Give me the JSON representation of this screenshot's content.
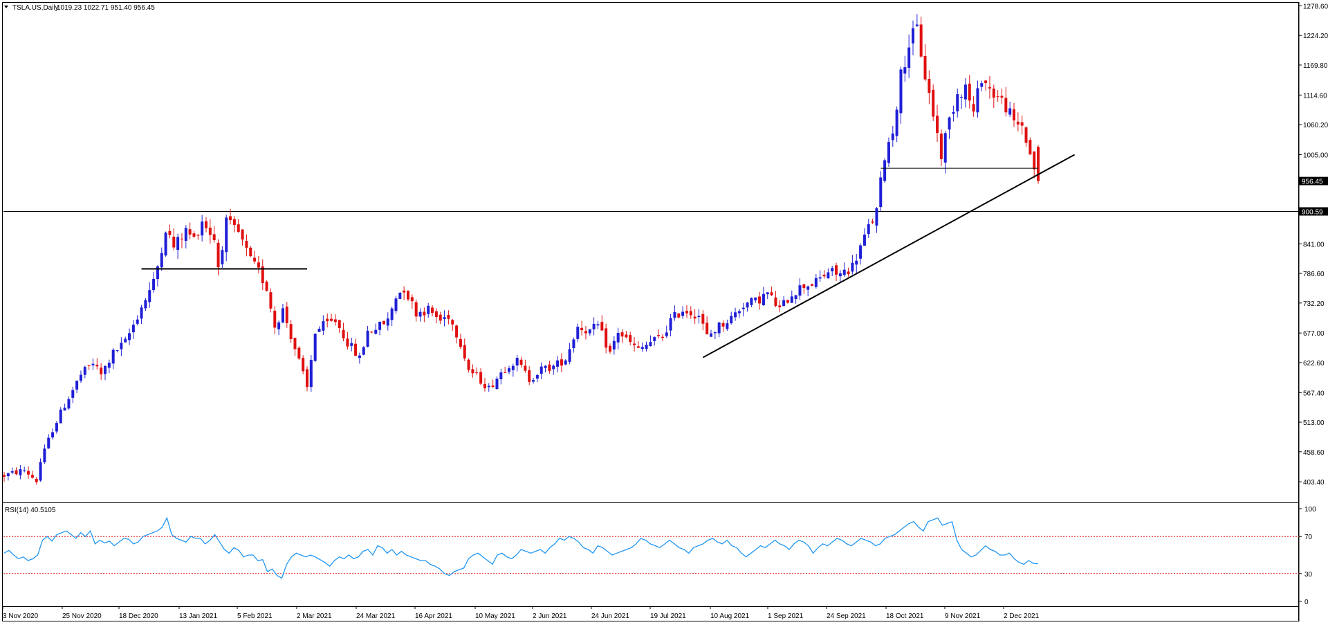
{
  "window": {
    "symbol_header": "TSLA.US,Daily",
    "ohlc_header": "1019.23 1022.71 951.40 956.45",
    "rsi_header": "RSI(14) 40.5105"
  },
  "colors": {
    "bull": "#1f1fd6",
    "bear": "#e01010",
    "rsi_line": "#2196f3",
    "rsi_levels": "#e02020",
    "trendline": "#000000",
    "grid_frame": "#000000"
  },
  "chart_data": [
    {
      "type": "candlestick",
      "title": "TSLA.US,Daily",
      "y_tick_labels": [
        "1278.60",
        "1224.20",
        "1169.80",
        "1114.60",
        "1060.20",
        "1005.00",
        "956.45",
        "900.59",
        "841.00",
        "786.60",
        "732.20",
        "677.00",
        "622.60",
        "567.40",
        "513.00",
        "458.60",
        "403.40"
      ],
      "ylim": [
        368,
        1283
      ],
      "x_tick_labels": [
        "3 Nov 2020",
        "25 Nov 2020",
        "18 Dec 2020",
        "13 Jan 2021",
        "5 Feb 2021",
        "2 Mar 2021",
        "24 Mar 2021",
        "16 Apr 2021",
        "10 May 2021",
        "2 Jun 2021",
        "24 Jun 2021",
        "19 Jul 2021",
        "10 Aug 2021",
        "1 Sep 2021",
        "24 Sep 2021",
        "18 Oct 2021",
        "9 Nov 2021",
        "2 Dec 2021"
      ],
      "last_price": {
        "value": 956.45,
        "label": "956.45"
      },
      "horizontal_level": {
        "value": 900.59,
        "label": "900.59"
      },
      "support_lines": [
        {
          "value": 795,
          "from_bar": 34,
          "to_bar": 75
        },
        {
          "value": 980,
          "from_bar": 217,
          "to_bar": 256
        }
      ],
      "trendline": {
        "from": {
          "bar": 173,
          "value": 632
        },
        "to": {
          "bar": 265,
          "value": 1005
        }
      },
      "anchors": [
        [
          0,
          415
        ],
        [
          5,
          425
        ],
        [
          8,
          405
        ],
        [
          9,
          440
        ],
        [
          12,
          500
        ],
        [
          15,
          545
        ],
        [
          19,
          600
        ],
        [
          22,
          622
        ],
        [
          24,
          600
        ],
        [
          27,
          640
        ],
        [
          30,
          660
        ],
        [
          34,
          725
        ],
        [
          37,
          770
        ],
        [
          38,
          800
        ],
        [
          40,
          870
        ],
        [
          42,
          835
        ],
        [
          45,
          865
        ],
        [
          47,
          850
        ],
        [
          49,
          885
        ],
        [
          52,
          850
        ],
        [
          53,
          800
        ],
        [
          55,
          880
        ],
        [
          58,
          860
        ],
        [
          61,
          810
        ],
        [
          63,
          790
        ],
        [
          65,
          760
        ],
        [
          67,
          690
        ],
        [
          69,
          720
        ],
        [
          73,
          625
        ],
        [
          75,
          575
        ],
        [
          77,
          680
        ],
        [
          79,
          690
        ],
        [
          82,
          700
        ],
        [
          85,
          660
        ],
        [
          88,
          630
        ],
        [
          90,
          680
        ],
        [
          93,
          690
        ],
        [
          95,
          700
        ],
        [
          97,
          745
        ],
        [
          99,
          760
        ],
        [
          102,
          715
        ],
        [
          105,
          720
        ],
        [
          108,
          700
        ],
        [
          110,
          710
        ],
        [
          113,
          660
        ],
        [
          115,
          610
        ],
        [
          118,
          590
        ],
        [
          120,
          575
        ],
        [
          123,
          605
        ],
        [
          125,
          620
        ],
        [
          127,
          625
        ],
        [
          130,
          592
        ],
        [
          133,
          610
        ],
        [
          136,
          615
        ],
        [
          139,
          630
        ],
        [
          142,
          690
        ],
        [
          145,
          680
        ],
        [
          147,
          690
        ],
        [
          150,
          640
        ],
        [
          152,
          680
        ],
        [
          154,
          665
        ],
        [
          157,
          645
        ],
        [
          160,
          660
        ],
        [
          163,
          670
        ],
        [
          165,
          700
        ],
        [
          168,
          720
        ],
        [
          170,
          715
        ],
        [
          172,
          710
        ],
        [
          174,
          670
        ],
        [
          177,
          690
        ],
        [
          180,
          705
        ],
        [
          183,
          730
        ],
        [
          186,
          735
        ],
        [
          189,
          750
        ],
        [
          192,
          720
        ],
        [
          195,
          750
        ],
        [
          198,
          765
        ],
        [
          201,
          770
        ],
        [
          204,
          790
        ],
        [
          207,
          785
        ],
        [
          210,
          800
        ],
        [
          212,
          835
        ],
        [
          214,
          870
        ],
        [
          216,
          900
        ],
        [
          218,
          1005
        ],
        [
          220,
          1050
        ],
        [
          222,
          1150
        ],
        [
          224,
          1210
        ],
        [
          226,
          1235
        ],
        [
          228,
          1150
        ],
        [
          230,
          1080
        ],
        [
          232,
          1005
        ],
        [
          234,
          1070
        ],
        [
          236,
          1120
        ],
        [
          238,
          1130
        ],
        [
          240,
          1080
        ],
        [
          242,
          1150
        ],
        [
          244,
          1125
        ],
        [
          246,
          1110
        ],
        [
          248,
          1095
        ],
        [
          250,
          1060
        ],
        [
          252,
          1060
        ],
        [
          254,
          1005
        ],
        [
          256,
          960
        ]
      ],
      "bar_count": 256
    },
    {
      "type": "line",
      "title": "RSI(14) 40.5105",
      "y_tick_labels": [
        "100",
        "70",
        "30",
        "0"
      ],
      "ylim": [
        0,
        100
      ],
      "levels": [
        70,
        30
      ],
      "series": [
        {
          "values": [
            52,
            55,
            50,
            46,
            48,
            44,
            46,
            50,
            66,
            70,
            65,
            72,
            74,
            76,
            72,
            68,
            74,
            70,
            76,
            62,
            66,
            63,
            65,
            60,
            64,
            68,
            67,
            62,
            64,
            70,
            72,
            74,
            76,
            80,
            90,
            72,
            68,
            66,
            64,
            70,
            68,
            68,
            62,
            66,
            72,
            64,
            56,
            52,
            58,
            55,
            48,
            50,
            50,
            44,
            45,
            32,
            35,
            28,
            25,
            40,
            48,
            52,
            50,
            48,
            50,
            48,
            45,
            42,
            38,
            44,
            48,
            46,
            50,
            46,
            48,
            54,
            56,
            50,
            60,
            58,
            52,
            56,
            50,
            54,
            50,
            48,
            46,
            44,
            44,
            40,
            38,
            35,
            30,
            28,
            32,
            34,
            36,
            46,
            50,
            52,
            48,
            44,
            40,
            50,
            52,
            48,
            46,
            50,
            56,
            54,
            52,
            54,
            56,
            52,
            58,
            62,
            68,
            66,
            70,
            68,
            64,
            58,
            56,
            52,
            60,
            58,
            54,
            50,
            52,
            54,
            56,
            58,
            62,
            68,
            66,
            62,
            60,
            58,
            62,
            66,
            62,
            58,
            56,
            52,
            58,
            60,
            62,
            66,
            68,
            64,
            62,
            66,
            60,
            58,
            52,
            48,
            52,
            56,
            60,
            58,
            62,
            66,
            62,
            60,
            56,
            62,
            66,
            64,
            60,
            52,
            58,
            62,
            60,
            64,
            68,
            66,
            62,
            60,
            64,
            68,
            66,
            64,
            60,
            62,
            68,
            70,
            72,
            76,
            80,
            84,
            86,
            80,
            76,
            86,
            88,
            90,
            82,
            84,
            86,
            66,
            56,
            52,
            48,
            50,
            55,
            60,
            56,
            54,
            50,
            50,
            52,
            46,
            42,
            40,
            44,
            41,
            40.5
          ]
        }
      ]
    }
  ]
}
